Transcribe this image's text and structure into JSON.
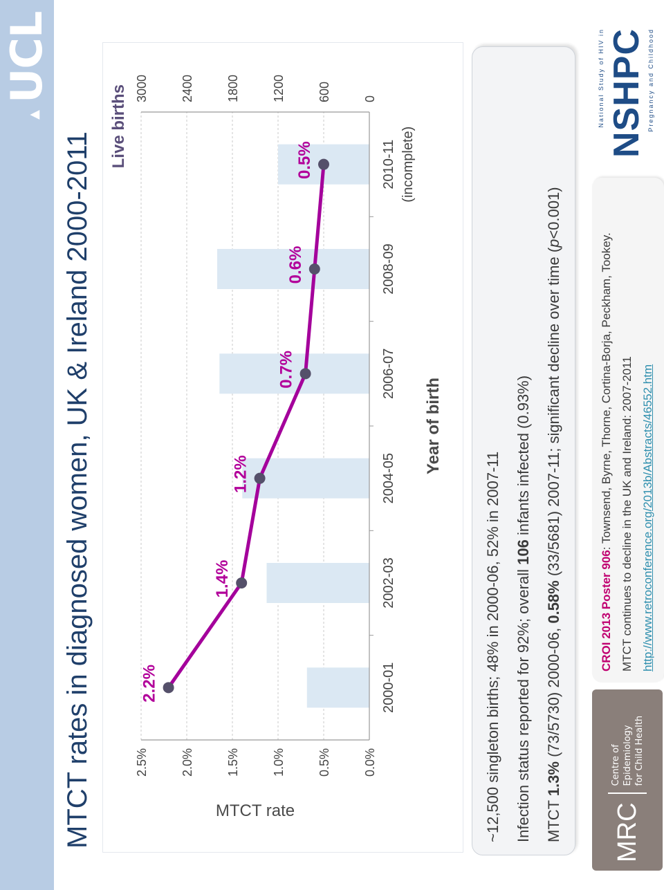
{
  "header": {
    "logo_text": "UCL",
    "title": "MTCT rates in diagnosed women, UK & Ireland 2000-2011"
  },
  "chart_data": {
    "type": "bar+line",
    "categories": [
      "2000-01",
      "2002-03",
      "2004-05",
      "2006-07",
      "2008-09",
      "2010-11"
    ],
    "category_sublabels": [
      "",
      "",
      "",
      "",
      "",
      "(incomplete)"
    ],
    "xlabel": "Year of birth",
    "ylabel": "MTCT rate",
    "y2label": "Live births",
    "ylim": [
      0,
      2.5
    ],
    "y_ticks": [
      "0.0%",
      "0.5%",
      "1.0%",
      "1.5%",
      "2.0%",
      "2.5%"
    ],
    "y_tick_values": [
      0,
      0.5,
      1.0,
      1.5,
      2.0,
      2.5
    ],
    "y2lim": [
      0,
      3000
    ],
    "y2_ticks": [
      "0",
      "600",
      "1200",
      "1800",
      "2400",
      "3000"
    ],
    "y2_tick_values": [
      0,
      600,
      1200,
      1800,
      2400,
      3000
    ],
    "series": [
      {
        "name": "Live births",
        "kind": "bar",
        "axis": "y2",
        "values": [
          820,
          1350,
          1670,
          1970,
          2000,
          1200
        ]
      },
      {
        "name": "MTCT rate",
        "kind": "line",
        "axis": "y",
        "values": [
          2.2,
          1.4,
          1.2,
          0.7,
          0.6,
          0.5
        ],
        "labels": [
          "2.2%",
          "1.4%",
          "1.2%",
          "0.7%",
          "0.6%",
          "0.5%"
        ]
      }
    ],
    "colors": {
      "bar": "#dbe8f3",
      "line": "#a4009b",
      "marker": "#55506a",
      "label": "#b2009a",
      "grid": "#c8c8c8"
    }
  },
  "notes": {
    "line1": "~12,500 singleton births;  48% in 2000-06, 52% in 2007-11",
    "line2_pre": "Infection status reported for 92%; overall ",
    "line2_bold": "106",
    "line2_post": " infants infected (0.93%)",
    "line3_a": "MTCT ",
    "line3_b": "1.3%",
    "line3_c": " (73/5730) 2000-06, ",
    "line3_d": "0.58%",
    "line3_e": " (33/5681) 2007-11; significant decline over time (",
    "line3_p": "p",
    "line3_f": "<0.001)"
  },
  "footer": {
    "mrc_label": "MRC",
    "mrc_sub1": "Centre of Epidemiology",
    "mrc_sub2": "for Child Health",
    "ref_strong": "CROI 2013 Poster 906",
    "ref_authors": ": Townsend, Byrne, Thorne, Cortina-Borja, Peckham, Tookey.",
    "ref_title": "MTCT continues to decline in the UK and Ireland: 2007-2011",
    "ref_link": "http://www.retroconference.org/2013b/Abstracts/46552.htm",
    "nshpc_top": "National Study of HIV in",
    "nshpc_main": "NSHPC",
    "nshpc_bottom": "Pregnancy and Childhood"
  }
}
